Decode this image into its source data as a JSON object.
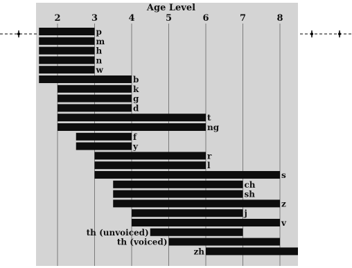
{
  "chart_data": {
    "type": "bar",
    "title": "Age Level",
    "xlabel": "Age Level",
    "xlim": [
      1,
      8.5
    ],
    "x_ticks": [
      2,
      3,
      4,
      5,
      6,
      7,
      8
    ],
    "grid": true,
    "bars": [
      {
        "sound": "p",
        "start": 1.5,
        "end": 3
      },
      {
        "sound": "m",
        "start": 1.5,
        "end": 3
      },
      {
        "sound": "h",
        "start": 1.5,
        "end": 3
      },
      {
        "sound": "n",
        "start": 1.5,
        "end": 3
      },
      {
        "sound": "w",
        "start": 1.5,
        "end": 3
      },
      {
        "sound": "b",
        "start": 1.5,
        "end": 4
      },
      {
        "sound": "k",
        "start": 2,
        "end": 4
      },
      {
        "sound": "g",
        "start": 2,
        "end": 4
      },
      {
        "sound": "d",
        "start": 2,
        "end": 4
      },
      {
        "sound": "t",
        "start": 2,
        "end": 6
      },
      {
        "sound": "ng",
        "start": 2,
        "end": 6
      },
      {
        "sound": "f",
        "start": 2.5,
        "end": 4
      },
      {
        "sound": "y",
        "start": 2.5,
        "end": 4
      },
      {
        "sound": "r",
        "start": 3,
        "end": 6
      },
      {
        "sound": "l",
        "start": 3,
        "end": 6
      },
      {
        "sound": "s",
        "start": 3,
        "end": 8
      },
      {
        "sound": "ch",
        "start": 3.5,
        "end": 7
      },
      {
        "sound": "sh",
        "start": 3.5,
        "end": 7
      },
      {
        "sound": "z",
        "start": 3.5,
        "end": 8
      },
      {
        "sound": "j",
        "start": 4,
        "end": 7
      },
      {
        "sound": "v",
        "start": 4,
        "end": 8
      },
      {
        "sound": "th (unvoiced)",
        "start": 4.5,
        "end": 7,
        "label_left": true
      },
      {
        "sound": "th (voiced)",
        "start": 5,
        "end": 8,
        "label_left": true
      },
      {
        "sound": "zh",
        "start": 6,
        "end": 8.5,
        "label_left": true
      }
    ]
  }
}
